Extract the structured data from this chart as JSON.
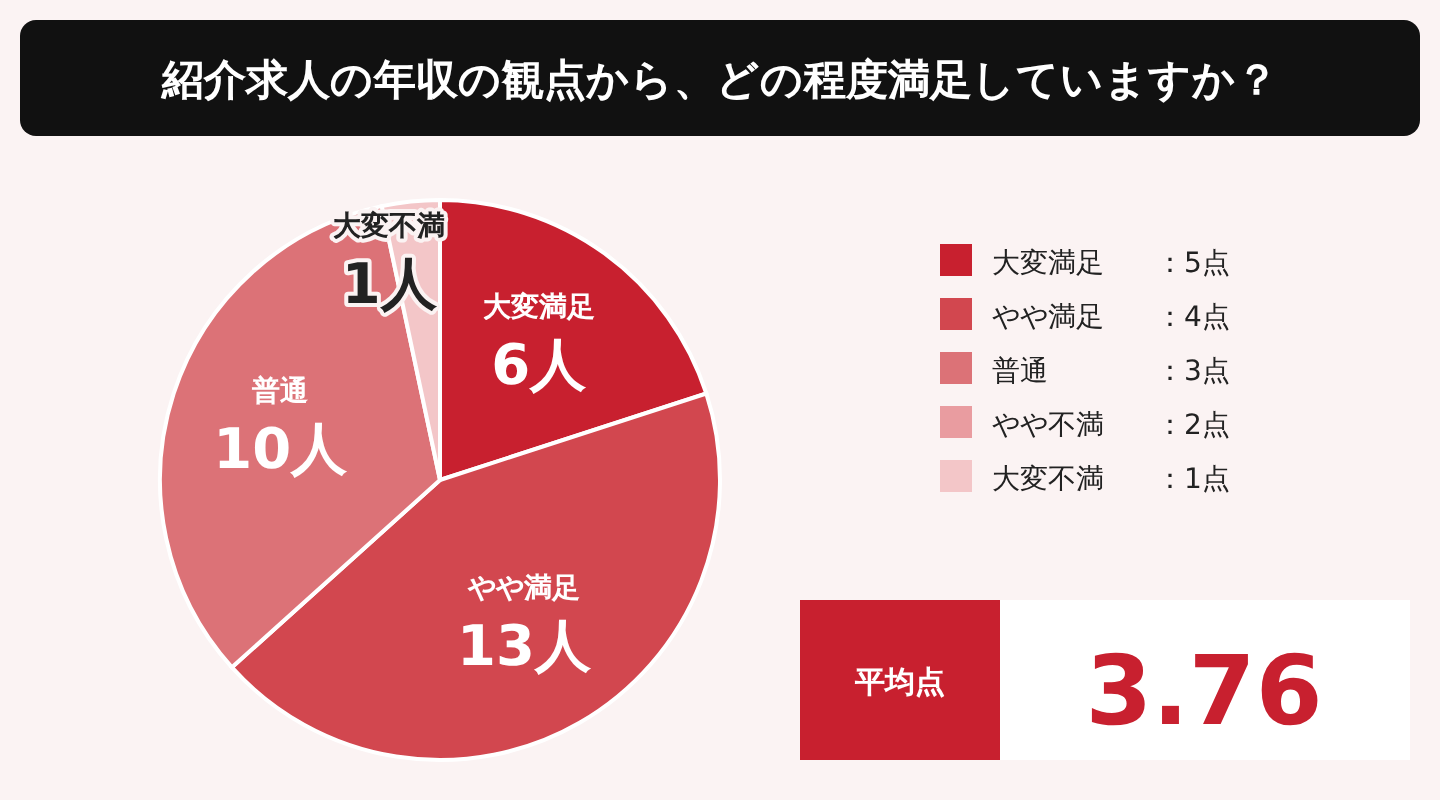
{
  "chart_data": {
    "type": "pie",
    "title": "紹介求人の年収の観点から、どの程度満足していますか？",
    "categories": [
      "大変満足",
      "やや満足",
      "普通",
      "やや不満",
      "大変不満"
    ],
    "values": [
      6,
      13,
      10,
      0,
      1
    ],
    "colors": [
      "#c8202f",
      "#d2474f",
      "#dc7277",
      "#e99ca0",
      "#f3c6c8"
    ],
    "value_labels": [
      "6人",
      "13人",
      "10人",
      null,
      "1人"
    ],
    "legend": "right",
    "annotations": [
      "：5点",
      "：4点",
      "：3点",
      "：2点",
      "：1点",
      "平均点",
      "3.76"
    ]
  }
}
